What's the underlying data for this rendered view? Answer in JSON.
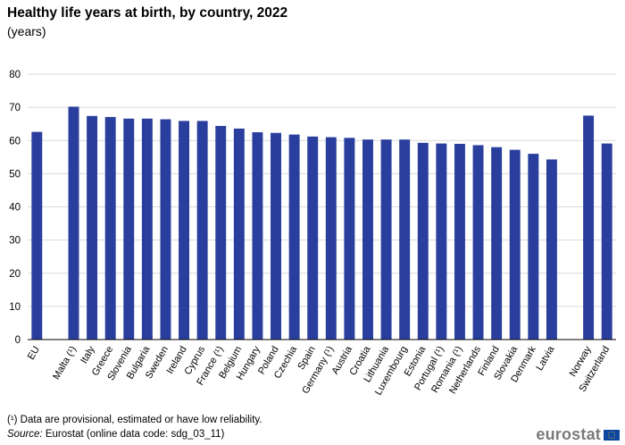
{
  "chart_data": {
    "type": "bar",
    "title": "Healthy life years at birth, by country, 2022",
    "subtitle": "(years)",
    "xlabel": "",
    "ylabel": "",
    "ylim": [
      0,
      80
    ],
    "yticks": [
      0,
      10,
      20,
      30,
      40,
      50,
      60,
      70,
      80
    ],
    "grid": true,
    "bar_color": "#2a3f9d",
    "groups": [
      [
        "EU"
      ],
      [
        "Malta (¹)",
        "Italy",
        "Greece",
        "Slovenia",
        "Bulgaria",
        "Sweden",
        "Ireland",
        "Cyprus",
        "France (¹)",
        "Belgium",
        "Hungary",
        "Poland",
        "Czechia",
        "Spain",
        "Germany (¹)",
        "Austria",
        "Croatia",
        "Lithuania",
        "Luxembourg",
        "Estonia",
        "Portugal (¹)",
        "Romania (¹)",
        "Netherlands",
        "Finland",
        "Slovakia",
        "Denmark",
        "Latvia"
      ],
      [
        "Norway",
        "Switzerland"
      ]
    ],
    "categories": [
      "EU",
      "Malta (¹)",
      "Italy",
      "Greece",
      "Slovenia",
      "Bulgaria",
      "Sweden",
      "Ireland",
      "Cyprus",
      "France (¹)",
      "Belgium",
      "Hungary",
      "Poland",
      "Czechia",
      "Spain",
      "Germany (¹)",
      "Austria",
      "Croatia",
      "Lithuania",
      "Luxembourg",
      "Estonia",
      "Portugal (¹)",
      "Romania (¹)",
      "Netherlands",
      "Finland",
      "Slovakia",
      "Denmark",
      "Latvia",
      "Norway",
      "Switzerland"
    ],
    "values": [
      62.6,
      70.2,
      67.4,
      67.1,
      66.6,
      66.6,
      66.4,
      65.9,
      65.9,
      64.4,
      63.6,
      62.5,
      62.3,
      61.8,
      61.2,
      61.0,
      60.8,
      60.3,
      60.3,
      60.3,
      59.3,
      59.1,
      59.0,
      58.6,
      58.0,
      57.2,
      56.0,
      54.3,
      67.5,
      59.1
    ]
  },
  "footnote": "(¹) Data are provisional, estimated or have low reliability.",
  "source_label": "Source:",
  "source_text": " Eurostat (online data code: sdg_03_11)",
  "logo_text": "eurostat"
}
